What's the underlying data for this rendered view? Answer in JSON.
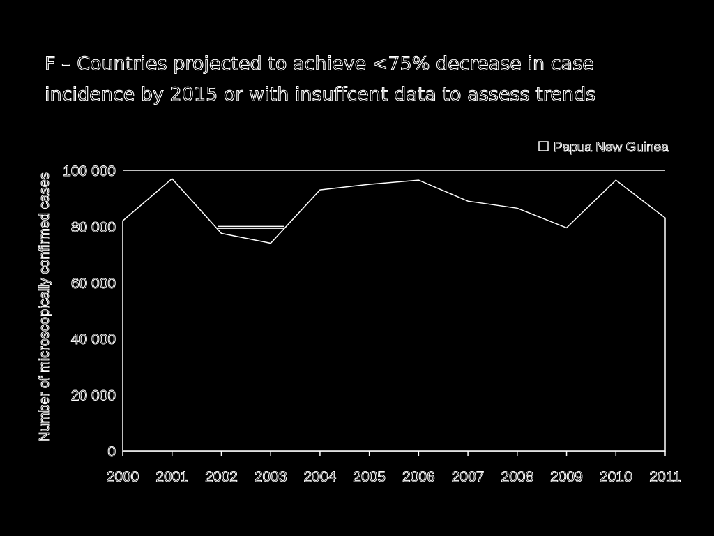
{
  "chart_data": {
    "type": "area",
    "title": "F – Countries projected to achieve <75% decrease in case\nincidence by 2015 or with insuffcent data to assess trends",
    "xlabel": "",
    "ylabel": "Number of microscopically confirmed cases",
    "categories": [
      "2000",
      "2001",
      "2002",
      "2003",
      "2004",
      "2005",
      "2006",
      "2007",
      "2008",
      "2009",
      "2010",
      "2011"
    ],
    "y_ticks": [
      0,
      20000,
      40000,
      60000,
      80000,
      100000
    ],
    "y_tick_labels": [
      "0",
      "20 000",
      "40 000",
      "60 000",
      "80 000",
      "100 000"
    ],
    "ylim": [
      0,
      100000
    ],
    "series": [
      {
        "name": "Papua New Guinea",
        "values": [
          82000,
          97000,
          77500,
          74000,
          93000,
          95000,
          96500,
          89000,
          86500,
          79500,
          96500,
          83000
        ]
      }
    ],
    "legend_position": "top-right",
    "grid": false,
    "colors": {
      "background": "#000000",
      "line": "#ffffff",
      "fill": "#000000"
    }
  }
}
